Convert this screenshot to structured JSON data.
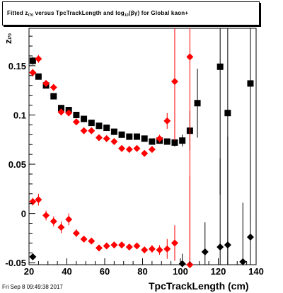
{
  "title_box": {
    "part1": "Fitted  z",
    "sub1": "I70",
    "part2": " versus TpcTrackLength and log",
    "sub2": "10",
    "part3": "(βγ) for Global kaon+"
  },
  "footer": {
    "timestamp": "Fri Sep  8 09:49:38 2017"
  },
  "chart_data": {
    "type": "scatter",
    "xlabel": "TpcTrackLength (cm)",
    "ylabel": "z",
    "ylabel_sub": "I70",
    "xlim": [
      20,
      140
    ],
    "ylim": [
      -0.052,
      0.188
    ],
    "xticks": [
      20,
      40,
      60,
      80,
      100,
      120,
      140
    ],
    "yticks": [
      -0.05,
      0,
      0.05,
      0.1,
      0.15
    ],
    "ytick_labels": [
      "-0.05",
      "0",
      "0.05",
      "0.1",
      "0.15"
    ],
    "grid": false,
    "colors": {
      "black": "#000000",
      "red": "#ff0000"
    },
    "series": [
      {
        "color": "#000000",
        "marker": "square",
        "points": [
          {
            "x": 22,
            "y": 0.155,
            "e": 0.004
          },
          {
            "x": 25,
            "y": 0.139,
            "e": 0.003
          },
          {
            "x": 29,
            "y": 0.13,
            "e": 0.003
          },
          {
            "x": 33,
            "y": 0.119,
            "e": 0.002
          },
          {
            "x": 37,
            "y": 0.107,
            "e": 0.002
          },
          {
            "x": 41,
            "y": 0.105,
            "e": 0.002
          },
          {
            "x": 45,
            "y": 0.1,
            "e": 0.002
          },
          {
            "x": 49,
            "y": 0.096,
            "e": 0.002
          },
          {
            "x": 53,
            "y": 0.092,
            "e": 0.002
          },
          {
            "x": 57,
            "y": 0.089,
            "e": 0.002
          },
          {
            "x": 61,
            "y": 0.087,
            "e": 0.002
          },
          {
            "x": 65,
            "y": 0.083,
            "e": 0.002
          },
          {
            "x": 69,
            "y": 0.08,
            "e": 0.002
          },
          {
            "x": 73,
            "y": 0.078,
            "e": 0.002
          },
          {
            "x": 77,
            "y": 0.078,
            "e": 0.002
          },
          {
            "x": 81,
            "y": 0.076,
            "e": 0.002
          },
          {
            "x": 85,
            "y": 0.073,
            "e": 0.002
          },
          {
            "x": 89,
            "y": 0.074,
            "e": 0.002
          },
          {
            "x": 93,
            "y": 0.073,
            "e": 0.003
          },
          {
            "x": 97,
            "y": 0.072,
            "e": 0.004
          },
          {
            "x": 101,
            "y": 0.074,
            "e": 0.006
          },
          {
            "x": 105,
            "y": 0.084,
            "e": 0.02
          },
          {
            "x": 109,
            "y": 0.112,
            "e": 0.035
          },
          {
            "x": 121,
            "y": 0.149,
            "e": 0.13
          },
          {
            "x": 125,
            "y": 0.102,
            "e": 0.18
          },
          {
            "x": 137,
            "y": 0.132,
            "e": 0.14
          }
        ]
      },
      {
        "color": "#ff0000",
        "marker": "diamond",
        "points": [
          {
            "x": 22,
            "y": 0.143,
            "e": 0.004
          },
          {
            "x": 25,
            "y": 0.157,
            "e": 0.004
          },
          {
            "x": 29,
            "y": 0.132,
            "e": 0.003
          },
          {
            "x": 33,
            "y": 0.128,
            "e": 0.003
          },
          {
            "x": 37,
            "y": 0.103,
            "e": 0.002
          },
          {
            "x": 41,
            "y": 0.102,
            "e": 0.002
          },
          {
            "x": 45,
            "y": 0.093,
            "e": 0.002
          },
          {
            "x": 49,
            "y": 0.084,
            "e": 0.002
          },
          {
            "x": 53,
            "y": 0.084,
            "e": 0.002
          },
          {
            "x": 57,
            "y": 0.077,
            "e": 0.002
          },
          {
            "x": 61,
            "y": 0.076,
            "e": 0.002
          },
          {
            "x": 65,
            "y": 0.073,
            "e": 0.002
          },
          {
            "x": 69,
            "y": 0.066,
            "e": 0.002
          },
          {
            "x": 73,
            "y": 0.065,
            "e": 0.002
          },
          {
            "x": 77,
            "y": 0.066,
            "e": 0.002
          },
          {
            "x": 81,
            "y": 0.061,
            "e": 0.002
          },
          {
            "x": 85,
            "y": 0.065,
            "e": 0.002
          },
          {
            "x": 89,
            "y": 0.076,
            "e": 0.004
          },
          {
            "x": 93,
            "y": 0.094,
            "e": 0.008
          },
          {
            "x": 97,
            "y": 0.134,
            "e": 0.06
          },
          {
            "x": 105,
            "y": 0.159,
            "e": 0.22
          }
        ]
      },
      {
        "color": "#ff0000",
        "marker": "diamond",
        "points": [
          {
            "x": 22,
            "y": 0.012,
            "e": 0.004
          },
          {
            "x": 25,
            "y": 0.014,
            "e": 0.006
          },
          {
            "x": 29,
            "y": -0.002,
            "e": 0.005
          },
          {
            "x": 33,
            "y": -0.008,
            "e": 0.005
          },
          {
            "x": 37,
            "y": -0.014,
            "e": 0.006
          },
          {
            "x": 41,
            "y": -0.006,
            "e": 0.006
          },
          {
            "x": 45,
            "y": -0.02,
            "e": 0.004
          },
          {
            "x": 49,
            "y": -0.026,
            "e": 0.003
          },
          {
            "x": 53,
            "y": -0.028,
            "e": 0.003
          },
          {
            "x": 57,
            "y": -0.035,
            "e": 0.003
          },
          {
            "x": 61,
            "y": -0.033,
            "e": 0.003
          },
          {
            "x": 65,
            "y": -0.032,
            "e": 0.003
          },
          {
            "x": 69,
            "y": -0.032,
            "e": 0.003
          },
          {
            "x": 73,
            "y": -0.034,
            "e": 0.003
          },
          {
            "x": 77,
            "y": -0.033,
            "e": 0.003
          },
          {
            "x": 81,
            "y": -0.037,
            "e": 0.003
          },
          {
            "x": 85,
            "y": -0.036,
            "e": 0.004
          },
          {
            "x": 89,
            "y": -0.037,
            "e": 0.005
          },
          {
            "x": 93,
            "y": -0.036,
            "e": 0.01
          },
          {
            "x": 97,
            "y": -0.03,
            "e": 0.018
          },
          {
            "x": 105,
            "y": -0.052,
            "e": 0.09
          }
        ]
      },
      {
        "color": "#000000",
        "marker": "diamond",
        "points": [
          {
            "x": 22,
            "y": -0.044,
            "e": 0.003
          },
          {
            "x": 101,
            "y": -0.051,
            "e": 0.01
          },
          {
            "x": 113,
            "y": -0.039,
            "e": 0.03
          },
          {
            "x": 121,
            "y": -0.034,
            "e": 0.09
          },
          {
            "x": 125,
            "y": -0.032,
            "e": 0.11
          },
          {
            "x": 133,
            "y": -0.049,
            "e": 0.06
          },
          {
            "x": 137,
            "y": -0.024,
            "e": 0.08
          }
        ]
      }
    ]
  }
}
